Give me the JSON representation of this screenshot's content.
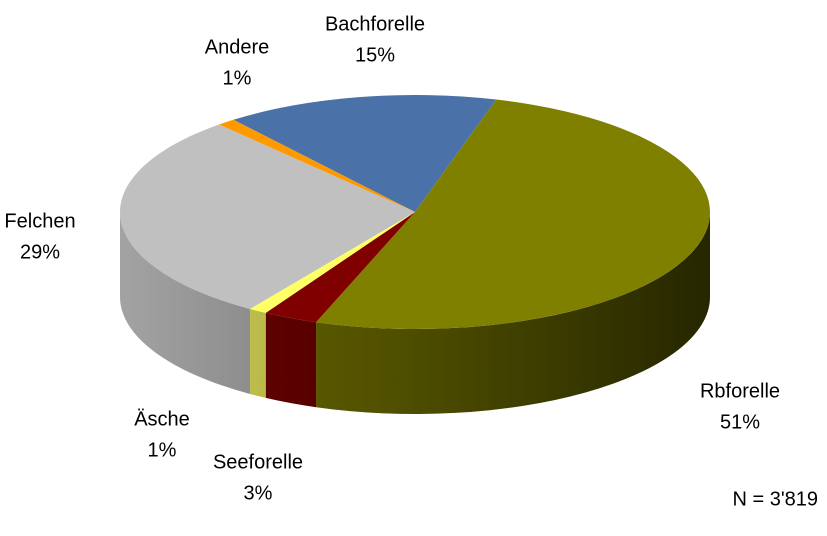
{
  "chart_data": {
    "type": "pie3d",
    "categories": [
      "Bachforelle",
      "Rbforelle",
      "Seeforelle",
      "Äsche",
      "Felchen",
      "Andere"
    ],
    "values": [
      15,
      51,
      3,
      1,
      29,
      1
    ],
    "value_labels": [
      "15%",
      "51%",
      "3%",
      "1%",
      "29%",
      "1%"
    ],
    "colors": [
      "#4a72a8",
      "#808000",
      "#800000",
      "#ffff66",
      "#c0c0c0",
      "#ff9900"
    ],
    "annotation": "N = 3'819"
  }
}
